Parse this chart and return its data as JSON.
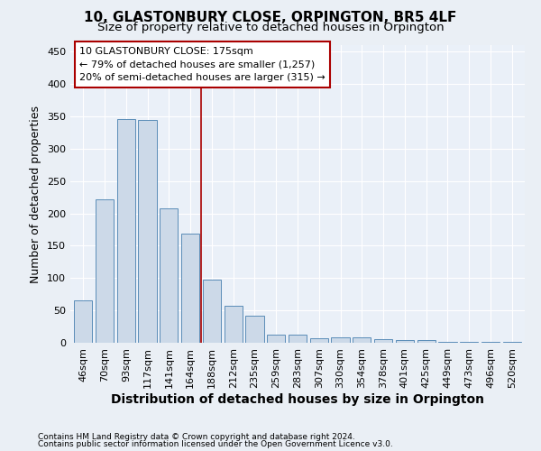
{
  "title": "10, GLASTONBURY CLOSE, ORPINGTON, BR5 4LF",
  "subtitle": "Size of property relative to detached houses in Orpington",
  "xlabel": "Distribution of detached houses by size in Orpington",
  "ylabel": "Number of detached properties",
  "categories": [
    "46sqm",
    "70sqm",
    "93sqm",
    "117sqm",
    "141sqm",
    "164sqm",
    "188sqm",
    "212sqm",
    "235sqm",
    "259sqm",
    "283sqm",
    "307sqm",
    "330sqm",
    "354sqm",
    "378sqm",
    "401sqm",
    "425sqm",
    "449sqm",
    "473sqm",
    "496sqm",
    "520sqm"
  ],
  "values": [
    65,
    222,
    346,
    345,
    208,
    168,
    97,
    57,
    42,
    13,
    13,
    7,
    8,
    8,
    5,
    4,
    4,
    2,
    1,
    1,
    1
  ],
  "bar_color": "#ccd9e8",
  "bar_edge_color": "#5b8db8",
  "vline_x": 5.5,
  "vline_color": "#aa0000",
  "annotation_lines": [
    "10 GLASTONBURY CLOSE: 175sqm",
    "← 79% of detached houses are smaller (1,257)",
    "20% of semi-detached houses are larger (315) →"
  ],
  "annotation_fontsize": 8,
  "ylim": [
    0,
    460
  ],
  "yticks": [
    0,
    50,
    100,
    150,
    200,
    250,
    300,
    350,
    400,
    450
  ],
  "title_fontsize": 11,
  "subtitle_fontsize": 9.5,
  "xlabel_fontsize": 10,
  "ylabel_fontsize": 9,
  "tick_fontsize": 8,
  "footer1": "Contains HM Land Registry data © Crown copyright and database right 2024.",
  "footer2": "Contains public sector information licensed under the Open Government Licence v3.0.",
  "footer_fontsize": 6.5,
  "bg_color": "#eaeff5",
  "plot_bg_color": "#eaf0f8",
  "grid_color": "#ffffff",
  "fig_width": 6.0,
  "fig_height": 5.0
}
